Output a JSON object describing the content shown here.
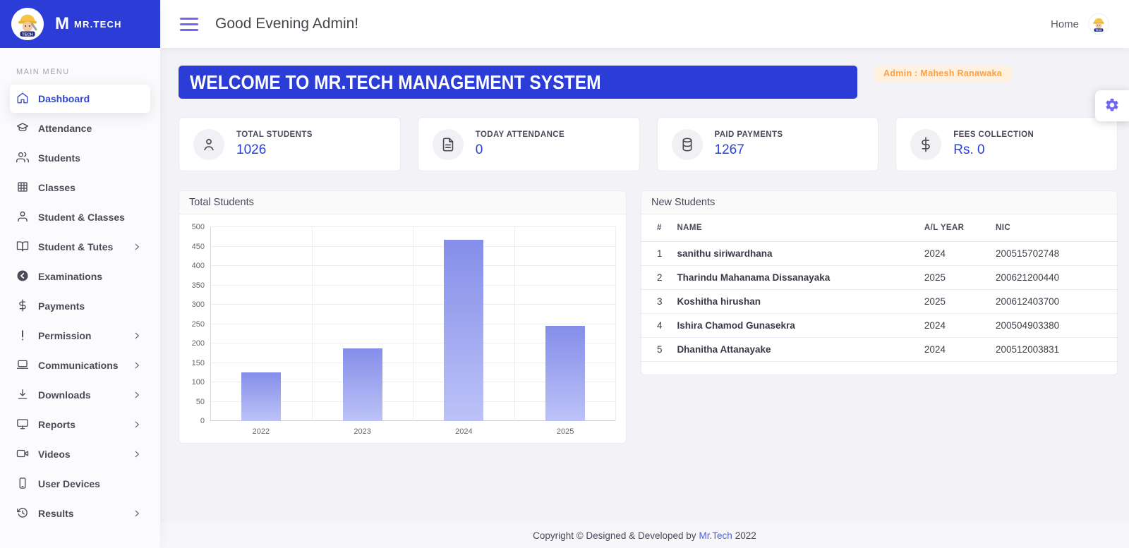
{
  "brand": {
    "logo_letter": "M",
    "name": "MR.TECH"
  },
  "sidebar": {
    "section_label": "MAIN MENU",
    "items": [
      {
        "label": "Dashboard",
        "icon": "home",
        "active": true,
        "chevron": false
      },
      {
        "label": "Attendance",
        "icon": "attendance",
        "active": false,
        "chevron": false
      },
      {
        "label": "Students",
        "icon": "users",
        "active": false,
        "chevron": false
      },
      {
        "label": "Classes",
        "icon": "grid",
        "active": false,
        "chevron": false
      },
      {
        "label": "Student & Classes",
        "icon": "user",
        "active": false,
        "chevron": false
      },
      {
        "label": "Student & Tutes",
        "icon": "book",
        "active": false,
        "chevron": true
      },
      {
        "label": "Examinations",
        "icon": "exam",
        "active": false,
        "chevron": false
      },
      {
        "label": "Payments",
        "icon": "dollar",
        "active": false,
        "chevron": false
      },
      {
        "label": "Permission",
        "icon": "alert",
        "active": false,
        "chevron": true
      },
      {
        "label": "Communications",
        "icon": "laptop",
        "active": false,
        "chevron": true
      },
      {
        "label": "Downloads",
        "icon": "download",
        "active": false,
        "chevron": true
      },
      {
        "label": "Reports",
        "icon": "monitor",
        "active": false,
        "chevron": true
      },
      {
        "label": "Videos",
        "icon": "video",
        "active": false,
        "chevron": true
      },
      {
        "label": "User Devices",
        "icon": "phone",
        "active": false,
        "chevron": false
      },
      {
        "label": "Results",
        "icon": "history",
        "active": false,
        "chevron": true
      }
    ]
  },
  "header": {
    "greeting": "Good Evening Admin!",
    "home_label": "Home"
  },
  "banner": {
    "title": "WELCOME TO MR.TECH MANAGEMENT SYSTEM",
    "admin_badge": "Admin : Mahesh Ranawaka"
  },
  "stats": [
    {
      "label": "TOTAL STUDENTS",
      "value": "1026",
      "icon": "person"
    },
    {
      "label": "TODAY ATTENDANCE",
      "value": "0",
      "icon": "file"
    },
    {
      "label": "PAID PAYMENTS",
      "value": "1267",
      "icon": "database"
    },
    {
      "label": "FEES COLLECTION",
      "value": "Rs. 0",
      "icon": "dollar"
    }
  ],
  "chart_data": {
    "type": "bar",
    "title": "Total Students",
    "categories": [
      "2022",
      "2023",
      "2024",
      "2025"
    ],
    "values": [
      125,
      187,
      467,
      245
    ],
    "ylim": [
      0,
      500
    ],
    "yticks": [
      0,
      50,
      100,
      150,
      200,
      250,
      300,
      350,
      400,
      450,
      500
    ],
    "grid": true,
    "legend": false,
    "bar_color_top": "#848ee9",
    "bar_color_bottom": "#bdc2f7"
  },
  "new_students": {
    "title": "New Students",
    "columns": [
      "#",
      "NAME",
      "A/L YEAR",
      "NIC"
    ],
    "rows": [
      {
        "num": "1",
        "name": "sanithu siriwardhana",
        "year": "2024",
        "nic": "200515702748"
      },
      {
        "num": "2",
        "name": "Tharindu Mahanama Dissanayaka",
        "year": "2025",
        "nic": "200621200440"
      },
      {
        "num": "3",
        "name": "Koshitha hirushan",
        "year": "2025",
        "nic": "200612403700"
      },
      {
        "num": "4",
        "name": "Ishira Chamod Gunasekra",
        "year": "2024",
        "nic": "200504903380"
      },
      {
        "num": "5",
        "name": "Dhanitha Attanayake",
        "year": "2024",
        "nic": "200512003831"
      }
    ]
  },
  "footer": {
    "text_before": "Copyright © Designed & Developed by",
    "link": "Mr.Tech",
    "text_after": "2022"
  },
  "colors": {
    "primary_blue": "#2b3cd7",
    "accent_purple": "#7367f0",
    "value_blue": "#2742d9",
    "badge_orange": "#ff9f43",
    "badge_bg": "#fff1dd"
  }
}
